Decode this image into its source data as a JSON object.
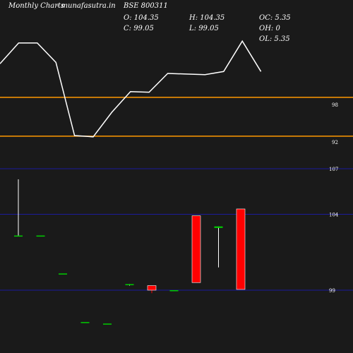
{
  "header": {
    "brand": "Monthly Charts",
    "site": "munafasutra.in",
    "symbol": "BSE 800311",
    "o": "O: 104.35",
    "h": "H: 104.35",
    "oc": "OC: 5.35",
    "c": "C: 99.05",
    "l": "L: 99.05",
    "oh": "OH: 0",
    "ol": "OL: 5.35"
  },
  "colors": {
    "background": "#1a1a1a",
    "line": "#ffffff",
    "level": "#ff9900",
    "grid": "#1c1cc8",
    "bull": "#00cc00",
    "bear": "#ff0000"
  },
  "chart_data": [
    {
      "type": "line",
      "panel": "top",
      "y_ticks": [
        98,
        92
      ],
      "ylim": [
        89,
        107
      ],
      "values": [
        103.7,
        106.9,
        106.9,
        103.9,
        92.6,
        92.4,
        96.2,
        99.4,
        99.3,
        102.2,
        102.1,
        102.0,
        102.5,
        107.2,
        102.5
      ],
      "reference_lines": [
        98.5,
        92.5
      ]
    },
    {
      "type": "candlestick",
      "panel": "bottom",
      "y_ticks": [
        107,
        104,
        99
      ],
      "ylim": [
        95.5,
        108.5
      ],
      "candles": [
        {
          "o": 102.6,
          "h": 106.3,
          "l": 102.6,
          "c": 102.6
        },
        {
          "o": 102.6,
          "h": 102.6,
          "l": 102.6,
          "c": 102.6
        },
        {
          "o": 100.1,
          "h": 100.1,
          "l": 100.1,
          "c": 100.1
        },
        {
          "o": 96.9,
          "h": 96.9,
          "l": 96.9,
          "c": 96.9
        },
        {
          "o": 96.8,
          "h": 96.8,
          "l": 96.8,
          "c": 96.8
        },
        {
          "o": 99.4,
          "h": 99.4,
          "l": 99.3,
          "c": 99.4
        },
        {
          "o": 99.3,
          "h": 99.3,
          "l": 98.8,
          "c": 99.0
        },
        {
          "o": 99.0,
          "h": 99.0,
          "l": 99.0,
          "c": 99.0
        },
        {
          "o": 103.9,
          "h": 103.9,
          "l": 99.5,
          "c": 99.5
        },
        {
          "o": 103.1,
          "h": 103.2,
          "l": 100.5,
          "c": 103.2
        },
        {
          "o": 104.35,
          "h": 104.35,
          "l": 99.05,
          "c": 99.05
        }
      ]
    }
  ]
}
